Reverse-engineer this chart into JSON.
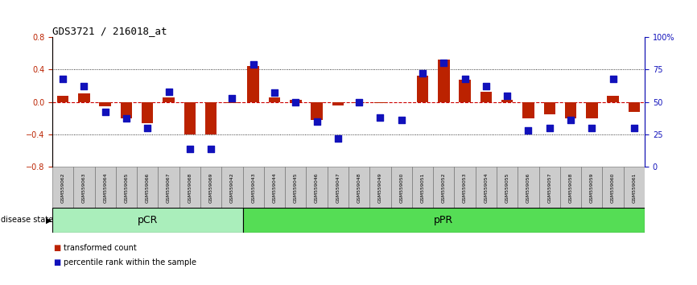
{
  "title": "GDS3721 / 216018_at",
  "samples": [
    "GSM559062",
    "GSM559063",
    "GSM559064",
    "GSM559065",
    "GSM559066",
    "GSM559067",
    "GSM559068",
    "GSM559069",
    "GSM559042",
    "GSM559043",
    "GSM559044",
    "GSM559045",
    "GSM559046",
    "GSM559047",
    "GSM559048",
    "GSM559049",
    "GSM559050",
    "GSM559051",
    "GSM559052",
    "GSM559053",
    "GSM559054",
    "GSM559055",
    "GSM559056",
    "GSM559057",
    "GSM559058",
    "GSM559059",
    "GSM559060",
    "GSM559061"
  ],
  "transformed_count": [
    0.08,
    0.1,
    -0.05,
    -0.2,
    -0.26,
    0.06,
    -0.4,
    -0.4,
    -0.01,
    0.44,
    0.06,
    0.03,
    -0.22,
    -0.04,
    -0.01,
    -0.01,
    0.0,
    0.32,
    0.52,
    0.27,
    0.12,
    0.03,
    -0.2,
    -0.15,
    -0.2,
    -0.2,
    0.08,
    -0.12
  ],
  "percentile_rank": [
    68,
    62,
    42,
    37,
    30,
    58,
    14,
    14,
    53,
    79,
    57,
    50,
    35,
    22,
    50,
    38,
    36,
    72,
    80,
    68,
    62,
    55,
    28,
    30,
    36,
    30,
    68,
    30
  ],
  "pCR_count": 9,
  "pPR_count": 19,
  "ylim_left": [
    -0.8,
    0.8
  ],
  "ylim_right": [
    0,
    100
  ],
  "yticks_left": [
    -0.8,
    -0.4,
    0.0,
    0.4,
    0.8
  ],
  "yticks_right": [
    0,
    25,
    50,
    75,
    100
  ],
  "ytick_right_labels": [
    "0",
    "25",
    "50",
    "75",
    "100%"
  ],
  "bar_color": "#bb2200",
  "dot_color": "#1111bb",
  "zero_line_color": "#cc0000",
  "grid_color": "#000000",
  "pCR_color": "#aaeebb",
  "pPR_color": "#55dd55",
  "xticklabel_bg": "#cccccc",
  "bar_width": 0.55,
  "dot_size": 28,
  "title_fontsize": 9,
  "axis_fontsize": 7,
  "label_fontsize": 7
}
